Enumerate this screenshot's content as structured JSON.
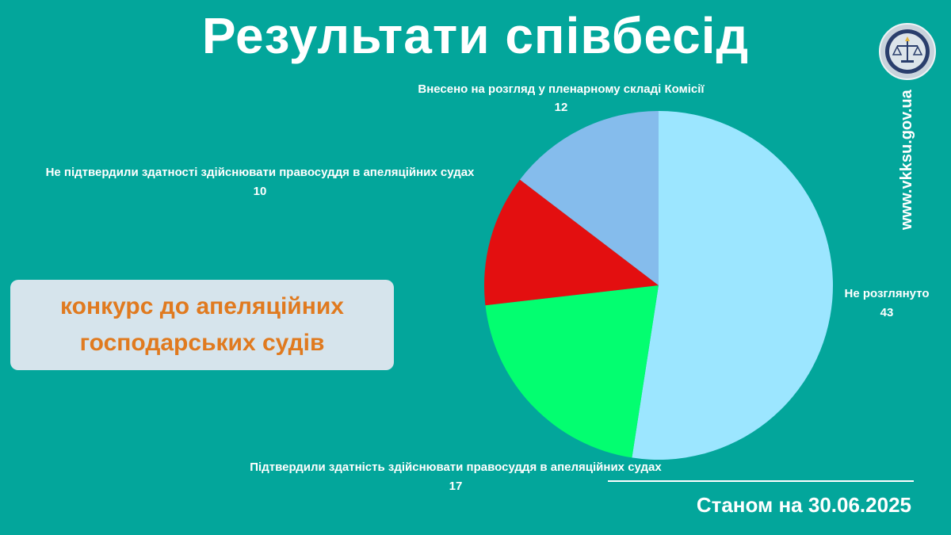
{
  "title": "Результати співбесід",
  "contest": {
    "line1": "конкурс до апеляційних",
    "line2": "господарських судів"
  },
  "date": "Станом на 30.06.2025",
  "site": "www.vkksu.gov.ua",
  "colors": {
    "background": "#03a69b",
    "contest_text": "#e07a1f",
    "contest_box": "#d6e4ec"
  },
  "chart_data": {
    "type": "pie",
    "start_angle": "top, clockwise",
    "slices": [
      {
        "label": "Не розглянуто",
        "value": 43,
        "color": "#9ce6ff"
      },
      {
        "label": "Підтвердили здатність здійснювати правосуддя в апеляційних судах",
        "value": 17,
        "color": "#03fe70"
      },
      {
        "label": "Не підтвердили здатності здійснювати правосуддя в апеляційних судах",
        "value": 10,
        "color": "#e30f10"
      },
      {
        "label": "Внесено на розгляд у пленарному складі Комісії",
        "value": 12,
        "color": "#85bcec"
      }
    ]
  }
}
